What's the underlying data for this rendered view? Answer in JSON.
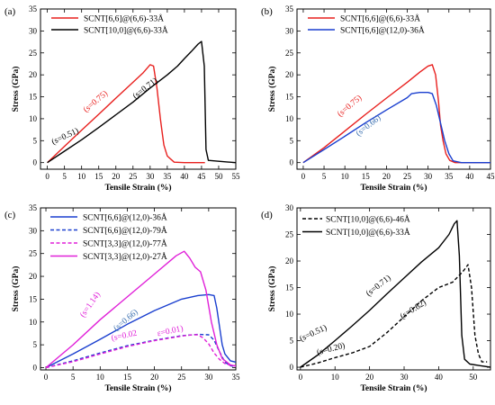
{
  "chart_data": [
    {
      "panel": "(a)",
      "type": "line",
      "xlabel": "Tensile Strain (%)",
      "ylabel": "Stress (GPa)",
      "xlim": [
        -2,
        55
      ],
      "ylim": [
        -1.5,
        35
      ],
      "xticks": [
        0,
        5,
        10,
        15,
        20,
        25,
        30,
        35,
        40,
        45,
        50,
        55
      ],
      "yticks": [
        0,
        5,
        10,
        15,
        20,
        25,
        30,
        35
      ],
      "legend_position": "top-left",
      "series": [
        {
          "name": "SCNT[6,6]@(6,6)-33Å",
          "color": "#e8201e",
          "dash": "solid",
          "x": [
            0,
            5,
            10,
            15,
            20,
            25,
            28,
            30,
            31,
            32,
            33,
            33.5,
            34,
            35,
            37,
            40,
            46
          ],
          "y": [
            0,
            3.7,
            7.4,
            11.0,
            14.7,
            18.3,
            20.5,
            22.3,
            22.0,
            17.0,
            10.0,
            7.0,
            4.0,
            1.5,
            0.1,
            0,
            0
          ]
        },
        {
          "name": "SCNT[10,0]@(6,6)-33Å",
          "color": "#000000",
          "dash": "solid",
          "x": [
            0,
            5,
            10,
            15,
            20,
            25,
            30,
            35,
            38,
            40,
            42,
            44,
            45,
            45.8,
            46.3,
            47,
            50,
            55
          ],
          "y": [
            0,
            2.6,
            5.2,
            8.0,
            10.9,
            13.8,
            17.0,
            20.0,
            22.0,
            23.7,
            25.3,
            27.0,
            27.6,
            22.0,
            3.0,
            0.5,
            0.3,
            0
          ]
        }
      ],
      "annotations": [
        {
          "text": "(s=0.75)",
          "x": 14.5,
          "y": 13.5,
          "angle": -40,
          "color": "#e8201e"
        },
        {
          "text": "(s=0.71)",
          "x": 29,
          "y": 16.5,
          "angle": -38,
          "color": "#000000"
        },
        {
          "text": "(s=0.51)",
          "x": 5.5,
          "y": 5.5,
          "angle": -25,
          "color": "#000000"
        }
      ]
    },
    {
      "panel": "(b)",
      "type": "line",
      "xlabel": "Tensile Strain (%)",
      "ylabel": "Stress (GPa)",
      "xlim": [
        -1.5,
        45
      ],
      "ylim": [
        -1.5,
        35
      ],
      "xticks": [
        0,
        5,
        10,
        15,
        20,
        25,
        30,
        35,
        40,
        45
      ],
      "yticks": [
        0,
        5,
        10,
        15,
        20,
        25,
        30,
        35
      ],
      "legend_position": "top-left",
      "series": [
        {
          "name": "SCNT[6,6]@(6,6)-33Å",
          "color": "#e8201e",
          "dash": "solid",
          "x": [
            0,
            5,
            10,
            15,
            20,
            25,
            28,
            30,
            31,
            31.8,
            32.5,
            33,
            33.6,
            34.3,
            35.2,
            36.5,
            40,
            45
          ],
          "y": [
            0,
            3.4,
            7.2,
            11.0,
            14.7,
            18.3,
            20.6,
            22.0,
            22.3,
            20.0,
            14.0,
            8.5,
            5.0,
            2.0,
            0.5,
            0,
            0,
            0
          ]
        },
        {
          "name": "SCNT[6,6]@(12,0)-36Å",
          "color": "#1a3fcf",
          "dash": "solid",
          "x": [
            0,
            5,
            10,
            15,
            20,
            25,
            26,
            28,
            30,
            31,
            32,
            33,
            34,
            35,
            36,
            38,
            45
          ],
          "y": [
            0,
            3.0,
            6.0,
            9.1,
            12.0,
            14.8,
            15.7,
            16.0,
            16.0,
            15.7,
            13.0,
            9.0,
            5.0,
            2.0,
            0.4,
            0,
            0
          ]
        }
      ],
      "annotations": [
        {
          "text": "(s=0.75)",
          "x": 11.5,
          "y": 12.5,
          "angle": -40,
          "color": "#e8201e"
        },
        {
          "text": "(s=0.66)",
          "x": 16,
          "y": 8,
          "angle": -38,
          "color": "#3a6fb0"
        }
      ]
    },
    {
      "panel": "(c)",
      "type": "line",
      "xlabel": "Tensile Strain (%)",
      "ylabel": "Stress (GPa)",
      "xlim": [
        -1,
        35
      ],
      "ylim": [
        -0.5,
        35
      ],
      "xticks": [
        0,
        5,
        10,
        15,
        20,
        25,
        30,
        35
      ],
      "yticks": [
        0,
        5,
        10,
        15,
        20,
        25,
        30,
        35
      ],
      "legend_position": "top-left",
      "series": [
        {
          "name": "SCNT[6,6]@(12,0)-36Å",
          "color": "#1a3fcf",
          "dash": "solid",
          "x": [
            0,
            5,
            10,
            15,
            20,
            25,
            28,
            30,
            31,
            31.5,
            32,
            32.5,
            33,
            34,
            35
          ],
          "y": [
            0,
            3.0,
            6.2,
            9.5,
            12.5,
            15.0,
            15.8,
            16.0,
            15.8,
            13.0,
            9.0,
            5.0,
            3.0,
            1.5,
            1.2
          ]
        },
        {
          "name": "SCNT[6,6]@(12,0)-79Å",
          "color": "#1a3fcf",
          "dash": "dashed",
          "x": [
            0,
            5,
            10,
            15,
            20,
            25,
            28,
            30,
            31,
            32,
            33,
            34,
            35
          ],
          "y": [
            0,
            1.5,
            3.2,
            4.8,
            6.0,
            7.0,
            7.3,
            7.2,
            6.0,
            3.5,
            1.2,
            0.4,
            0.2
          ]
        },
        {
          "name": "SCNT[3,3]@(12,0)-77Å",
          "color": "#e020d8",
          "dash": "dashed",
          "x": [
            0,
            5,
            10,
            15,
            20,
            25,
            27,
            28,
            29,
            30,
            31,
            32,
            33,
            34,
            35
          ],
          "y": [
            0,
            1.3,
            3.0,
            4.6,
            5.9,
            6.9,
            7.2,
            7.2,
            6.5,
            5.2,
            3.2,
            1.8,
            0.9,
            0.5,
            0.4
          ]
        },
        {
          "name": "SCNT[3,3]@(12,0)-27Å",
          "color": "#e020d8",
          "dash": "solid",
          "x": [
            0,
            5,
            10,
            15,
            20,
            24,
            25.5,
            26.5,
            27.5,
            28.5,
            29.5,
            30.5,
            31.5,
            32.5,
            34,
            35
          ],
          "y": [
            0,
            5.0,
            10.5,
            15.5,
            20.5,
            24.5,
            25.5,
            24.0,
            22.0,
            21.0,
            17.0,
            10.0,
            5.0,
            2.0,
            0.6,
            0.3
          ]
        }
      ],
      "annotations": [
        {
          "text": "(s=1.14)",
          "x": 8.5,
          "y": 13.5,
          "angle": -55,
          "color": "#e020d8"
        },
        {
          "text": "(s=0.66)",
          "x": 15,
          "y": 10,
          "angle": -40,
          "color": "#3a6fb0"
        },
        {
          "text": "(s=0.02",
          "x": 14.5,
          "y": 6.5,
          "angle": -12,
          "color": "#e020d8"
        },
        {
          "text": "ε=0.01)",
          "x": 23,
          "y": 7.5,
          "angle": -12,
          "color": "#e020d8"
        }
      ]
    },
    {
      "panel": "(d)",
      "type": "line",
      "xlabel": "Tensile Strain (%)",
      "ylabel": "Stress (GPa)",
      "xlim": [
        -1,
        55
      ],
      "ylim": [
        -0.5,
        30
      ],
      "xticks": [
        0,
        10,
        20,
        30,
        40,
        50
      ],
      "yticks": [
        0,
        5,
        10,
        15,
        20,
        25,
        30
      ],
      "legend_position": "top-left",
      "series": [
        {
          "name": "SCNT[10,0]@(6,6)-46Å",
          "color": "#000000",
          "dash": "dashed",
          "x": [
            0,
            5,
            10,
            15,
            20,
            25,
            30,
            35,
            40,
            44,
            47,
            48.5,
            49.5,
            50.5,
            51.5,
            52.5,
            54
          ],
          "y": [
            0,
            0.8,
            1.8,
            2.7,
            3.9,
            6.5,
            9.5,
            12.5,
            15.0,
            16.0,
            18.0,
            19.3,
            15.0,
            6.0,
            2.5,
            1.0,
            1.0
          ]
        },
        {
          "name": "SCNT[10,0]@(6,6)-33Å",
          "color": "#000000",
          "dash": "solid",
          "x": [
            0,
            5,
            10,
            15,
            20,
            25,
            30,
            35,
            40,
            43,
            44.5,
            45.3,
            46,
            46.7,
            47.5,
            49,
            52,
            55
          ],
          "y": [
            0,
            2.3,
            5.0,
            7.8,
            10.7,
            13.8,
            16.8,
            19.8,
            22.5,
            25.0,
            27.0,
            27.6,
            21.0,
            6.0,
            1.5,
            0.6,
            0.3,
            0
          ]
        }
      ],
      "annotations": [
        {
          "text": "(s=0.51)",
          "x": 4,
          "y": 6,
          "angle": -25,
          "color": "#000000"
        },
        {
          "text": "(s=0.71)",
          "x": 23,
          "y": 15,
          "angle": -38,
          "color": "#000000"
        },
        {
          "text": "(s=0.62)",
          "x": 33,
          "y": 10.5,
          "angle": -32,
          "color": "#000000"
        },
        {
          "text": "(s=0.20)",
          "x": 9,
          "y": 3,
          "angle": -15,
          "color": "#000000"
        }
      ]
    }
  ]
}
